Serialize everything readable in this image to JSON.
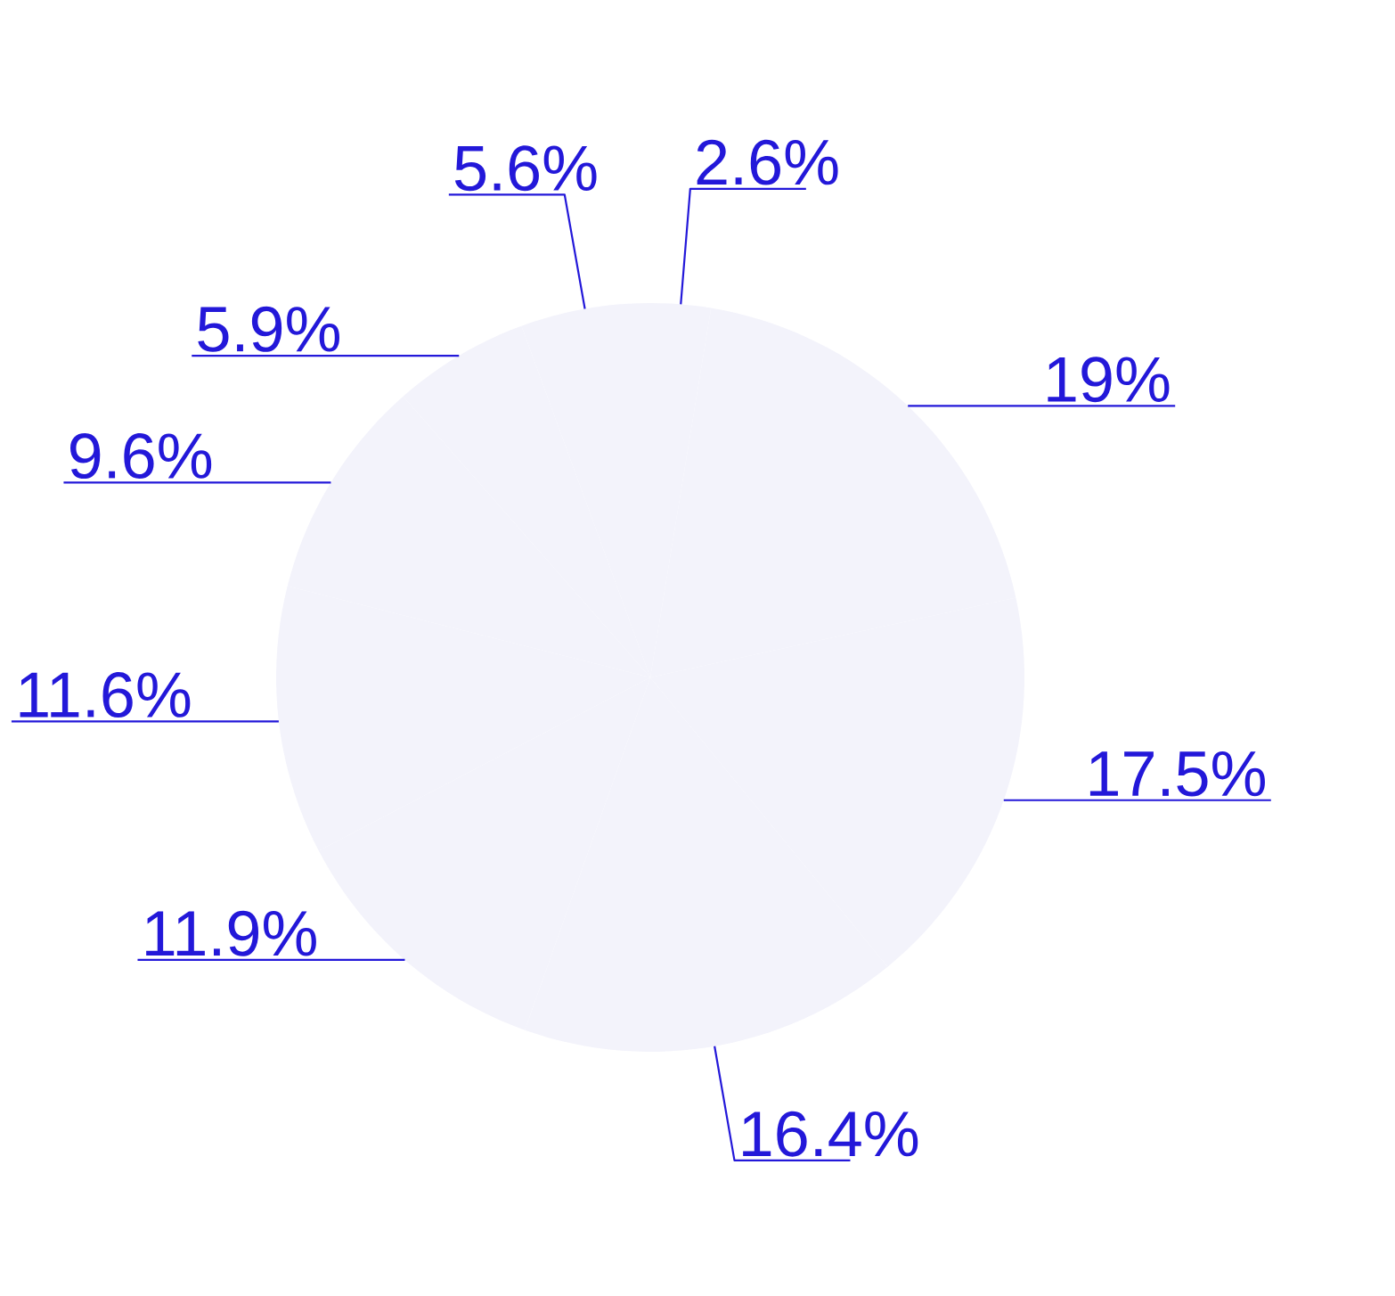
{
  "chart_data": {
    "type": "pie",
    "categories": [
      null,
      null,
      null,
      null,
      null,
      null,
      null,
      null,
      null
    ],
    "values": [
      2.6,
      19,
      17.5,
      16.4,
      11.9,
      11.6,
      9.6,
      5.9,
      5.6
    ],
    "value_labels": [
      "2.6%",
      "19%",
      "17.5%",
      "16.4%",
      "11.9%",
      "11.6%",
      "9.6%",
      "5.9%",
      "5.6%"
    ],
    "colors": [
      "#f3f3fb",
      "#f3f3fb",
      "#f3f3fb",
      "#f3f3fb",
      "#f3f3fb",
      "#f3f3fb",
      "#f3f3fb",
      "#f3f3fb",
      "#f3f3fb"
    ]
  }
}
